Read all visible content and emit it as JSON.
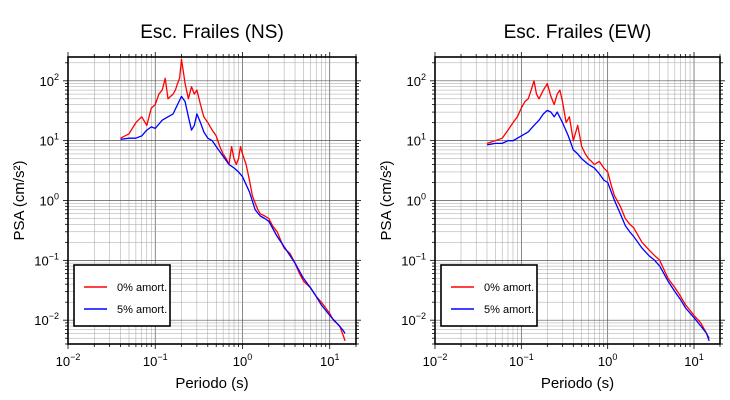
{
  "chart_data": [
    {
      "type": "line",
      "title": "Esc. Frailes (NS)",
      "xlabel": "Periodo (s)",
      "ylabel": "PSA (cm/s²)",
      "x_scale": "log",
      "y_scale": "log",
      "xlim": [
        0.01,
        20
      ],
      "ylim": [
        0.004,
        250
      ],
      "x_ticks": [
        {
          "v": 0.01,
          "b": "10",
          "e": "−2"
        },
        {
          "v": 0.1,
          "b": "10",
          "e": "−1"
        },
        {
          "v": 1,
          "b": "10",
          "e": "0"
        },
        {
          "v": 10,
          "b": "10",
          "e": "1"
        }
      ],
      "y_ticks": [
        {
          "v": 0.01,
          "b": "10",
          "e": "−2"
        },
        {
          "v": 0.1,
          "b": "10",
          "e": "−1"
        },
        {
          "v": 1,
          "b": "10",
          "e": "0"
        },
        {
          "v": 10,
          "b": "10",
          "e": "1"
        },
        {
          "v": 100,
          "b": "10",
          "e": "2"
        }
      ],
      "grid": true,
      "legend_position": "bottom-left",
      "series": [
        {
          "name": "0% amort.",
          "color": "#ff0000",
          "x": [
            0.04,
            0.05,
            0.06,
            0.07,
            0.08,
            0.09,
            0.1,
            0.11,
            0.12,
            0.13,
            0.14,
            0.15,
            0.16,
            0.17,
            0.18,
            0.19,
            0.2,
            0.22,
            0.24,
            0.26,
            0.28,
            0.3,
            0.33,
            0.36,
            0.4,
            0.45,
            0.5,
            0.55,
            0.6,
            0.65,
            0.7,
            0.75,
            0.8,
            0.85,
            0.9,
            0.95,
            1.0,
            1.1,
            1.2,
            1.3,
            1.4,
            1.5,
            1.6,
            1.8,
            2.0,
            2.2,
            2.5,
            2.8,
            3.0,
            3.5,
            4.0,
            4.5,
            5,
            6,
            7,
            8,
            9,
            10,
            11,
            12,
            13,
            14,
            15
          ],
          "y": [
            11,
            13,
            20,
            25,
            18,
            35,
            40,
            60,
            70,
            110,
            50,
            55,
            60,
            70,
            90,
            110,
            230,
            90,
            50,
            80,
            60,
            70,
            40,
            25,
            20,
            15,
            12,
            8,
            6,
            5,
            4,
            8,
            5,
            4,
            5,
            8,
            6,
            4,
            2.2,
            1.2,
            0.9,
            0.7,
            0.6,
            0.55,
            0.5,
            0.38,
            0.3,
            0.2,
            0.16,
            0.13,
            0.09,
            0.06,
            0.045,
            0.035,
            0.025,
            0.02,
            0.016,
            0.013,
            0.01,
            0.009,
            0.008,
            0.006,
            0.0045
          ]
        },
        {
          "name": "5% amort.",
          "color": "#0000ff",
          "x": [
            0.04,
            0.05,
            0.06,
            0.07,
            0.08,
            0.09,
            0.1,
            0.12,
            0.14,
            0.16,
            0.18,
            0.2,
            0.22,
            0.24,
            0.26,
            0.28,
            0.3,
            0.33,
            0.36,
            0.4,
            0.45,
            0.5,
            0.6,
            0.7,
            0.8,
            0.9,
            1.0,
            1.2,
            1.4,
            1.6,
            1.8,
            2.0,
            2.5,
            3.0,
            3.5,
            4.0,
            5,
            6,
            7,
            8,
            10,
            12,
            14,
            15
          ],
          "y": [
            10.5,
            11,
            11,
            12,
            15,
            17,
            16,
            22,
            25,
            28,
            40,
            55,
            45,
            25,
            15,
            18,
            28,
            20,
            14,
            11,
            10,
            8,
            5.5,
            4,
            3.5,
            3.0,
            2.5,
            1.4,
            0.7,
            0.55,
            0.5,
            0.45,
            0.25,
            0.17,
            0.12,
            0.09,
            0.05,
            0.035,
            0.025,
            0.018,
            0.012,
            0.009,
            0.007,
            0.006
          ]
        }
      ]
    },
    {
      "type": "line",
      "title": "Esc. Frailes (EW)",
      "xlabel": "Periodo (s)",
      "ylabel": "PSA (cm/s²)",
      "x_scale": "log",
      "y_scale": "log",
      "xlim": [
        0.01,
        20
      ],
      "ylim": [
        0.004,
        250
      ],
      "x_ticks": [
        {
          "v": 0.01,
          "b": "10",
          "e": "−2"
        },
        {
          "v": 0.1,
          "b": "10",
          "e": "−1"
        },
        {
          "v": 1,
          "b": "10",
          "e": "0"
        },
        {
          "v": 10,
          "b": "10",
          "e": "1"
        }
      ],
      "y_ticks": [
        {
          "v": 0.01,
          "b": "10",
          "e": "−2"
        },
        {
          "v": 0.1,
          "b": "10",
          "e": "−1"
        },
        {
          "v": 1,
          "b": "10",
          "e": "0"
        },
        {
          "v": 10,
          "b": "10",
          "e": "1"
        },
        {
          "v": 100,
          "b": "10",
          "e": "2"
        }
      ],
      "grid": true,
      "legend_position": "bottom-left",
      "series": [
        {
          "name": "0% amort.",
          "color": "#ff0000",
          "x": [
            0.04,
            0.05,
            0.06,
            0.07,
            0.08,
            0.09,
            0.1,
            0.11,
            0.12,
            0.13,
            0.14,
            0.15,
            0.16,
            0.18,
            0.2,
            0.22,
            0.24,
            0.26,
            0.28,
            0.3,
            0.33,
            0.36,
            0.4,
            0.45,
            0.5,
            0.55,
            0.6,
            0.65,
            0.7,
            0.8,
            0.9,
            1.0,
            1.1,
            1.2,
            1.4,
            1.6,
            1.8,
            2.0,
            2.5,
            3.0,
            3.5,
            4.0,
            5,
            6,
            7,
            8,
            10,
            12,
            14,
            15
          ],
          "y": [
            9,
            10,
            11,
            15,
            20,
            25,
            35,
            45,
            50,
            70,
            100,
            60,
            50,
            70,
            90,
            55,
            40,
            60,
            70,
            45,
            20,
            25,
            10,
            18,
            8,
            6,
            5,
            4.5,
            4,
            4.5,
            3.5,
            3,
            1.8,
            1.2,
            0.8,
            0.5,
            0.4,
            0.35,
            0.2,
            0.15,
            0.12,
            0.1,
            0.05,
            0.035,
            0.025,
            0.018,
            0.012,
            0.009,
            0.006,
            0.005
          ]
        },
        {
          "name": "5% amort.",
          "color": "#0000ff",
          "x": [
            0.04,
            0.05,
            0.06,
            0.07,
            0.08,
            0.09,
            0.1,
            0.12,
            0.14,
            0.16,
            0.18,
            0.2,
            0.22,
            0.24,
            0.26,
            0.3,
            0.35,
            0.4,
            0.45,
            0.5,
            0.6,
            0.7,
            0.8,
            0.9,
            1.0,
            1.2,
            1.4,
            1.6,
            1.8,
            2.0,
            2.5,
            3.0,
            3.5,
            4.0,
            5,
            6,
            7,
            8,
            10,
            12,
            14,
            15
          ],
          "y": [
            8.5,
            9,
            9,
            10,
            10,
            11,
            12,
            14,
            18,
            22,
            28,
            32,
            30,
            25,
            30,
            20,
            12,
            7,
            6,
            5,
            4,
            3.5,
            2.8,
            2.2,
            2.0,
            1.0,
            0.6,
            0.38,
            0.3,
            0.25,
            0.16,
            0.12,
            0.1,
            0.08,
            0.045,
            0.03,
            0.022,
            0.016,
            0.011,
            0.008,
            0.006,
            0.0045
          ]
        }
      ]
    }
  ]
}
